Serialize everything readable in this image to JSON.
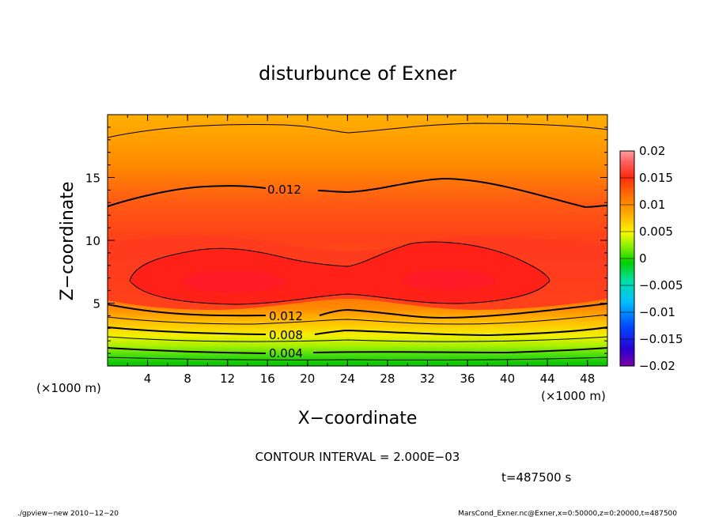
{
  "chart_data": {
    "type": "contour",
    "title": "disturbunce of Exner",
    "xlabel": "X−coordinate",
    "ylabel": "Z−coordinate",
    "x_unit": "(×1000 m)",
    "y_unit": "(×1000 m)",
    "xlim": [
      0,
      50
    ],
    "ylim": [
      0,
      20
    ],
    "x_ticks": [
      "4",
      "8",
      "12",
      "16",
      "20",
      "24",
      "28",
      "32",
      "36",
      "40",
      "44",
      "48"
    ],
    "y_ticks": [
      "5",
      "10",
      "15"
    ],
    "contour_interval_text": "CONTOUR INTERVAL = 2.000E−03",
    "contour_levels": [
      0.002,
      0.004,
      0.006,
      0.008,
      0.01,
      0.012,
      0.014,
      0.016
    ],
    "contour_labels": [
      {
        "text": "0.012",
        "x": 20,
        "z": 14.0
      },
      {
        "text": "0.012",
        "x": 17,
        "z": 3.9
      },
      {
        "text": "0.008",
        "x": 17,
        "z": 2.4
      },
      {
        "text": "0.004",
        "x": 17,
        "z": 0.9
      }
    ],
    "colorbar": {
      "labels": [
        "0.02",
        "0.015",
        "0.01",
        "0.005",
        "0",
        "−0.005",
        "−0.01",
        "−0.015",
        "−0.02"
      ],
      "range": [
        -0.02,
        0.02
      ]
    },
    "time_text": "t=487500 s"
  },
  "footer": {
    "left": "./gpview−new   2010−12−20",
    "right": "MarsCond_Exner.nc@Exner,x=0:50000,z=0:20000,t=487500"
  }
}
